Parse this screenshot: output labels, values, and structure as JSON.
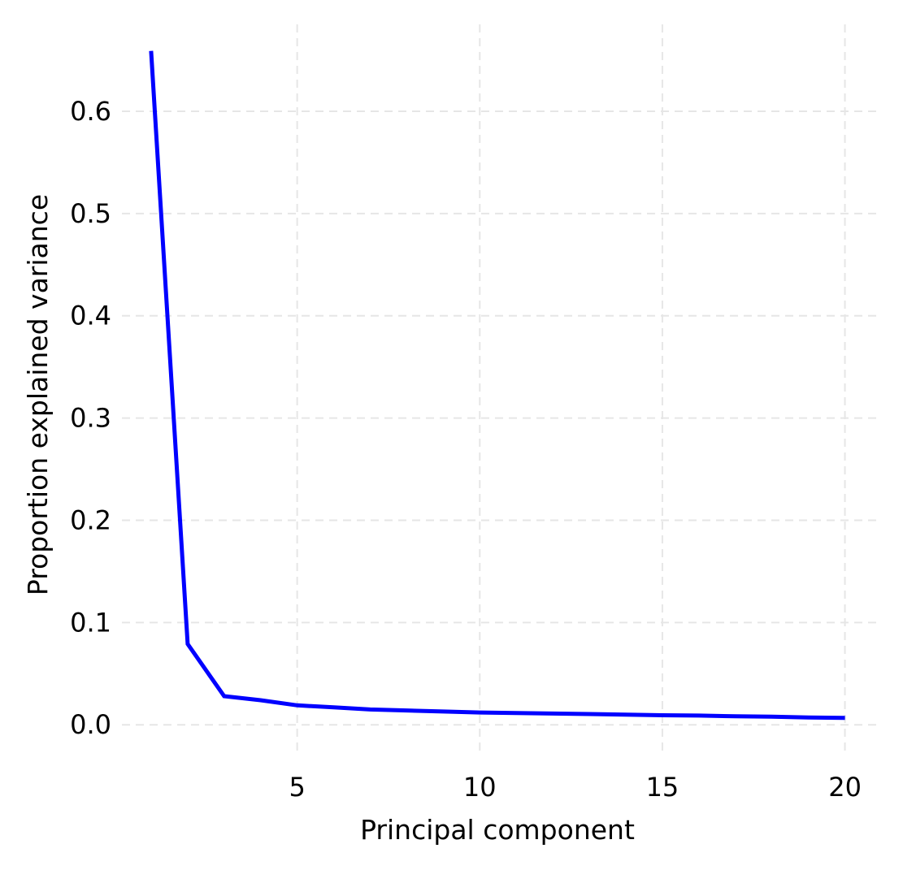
{
  "chart_data": {
    "type": "line",
    "title": "",
    "xlabel": "Principal component",
    "ylabel": "Proportion explained variance",
    "xlim": [
      0.2,
      20.9
    ],
    "ylim": [
      -0.03,
      0.685
    ],
    "xticks": [
      5,
      10,
      15,
      20
    ],
    "xtick_labels": [
      "5",
      "10",
      "15",
      "20"
    ],
    "yticks": [
      0.0,
      0.1,
      0.2,
      0.3,
      0.4,
      0.5,
      0.6
    ],
    "ytick_labels": [
      "0.0",
      "0.1",
      "0.2",
      "0.3",
      "0.4",
      "0.5",
      "0.6"
    ],
    "grid": true,
    "grid_style": "dashed",
    "legend": "none",
    "colors": {
      "line": "#0000ff",
      "grid": "#e6e6e6",
      "text": "#000000"
    },
    "series": [
      {
        "x": [
          1,
          2,
          3,
          4,
          5,
          6,
          7,
          8,
          9,
          10,
          11,
          12,
          13,
          14,
          15,
          16,
          17,
          18,
          19,
          20
        ],
        "values": [
          0.659,
          0.079,
          0.028,
          0.024,
          0.019,
          0.017,
          0.015,
          0.014,
          0.013,
          0.012,
          0.0115,
          0.011,
          0.0105,
          0.01,
          0.0093,
          0.009,
          0.0083,
          0.008,
          0.0072,
          0.0068
        ]
      }
    ]
  }
}
